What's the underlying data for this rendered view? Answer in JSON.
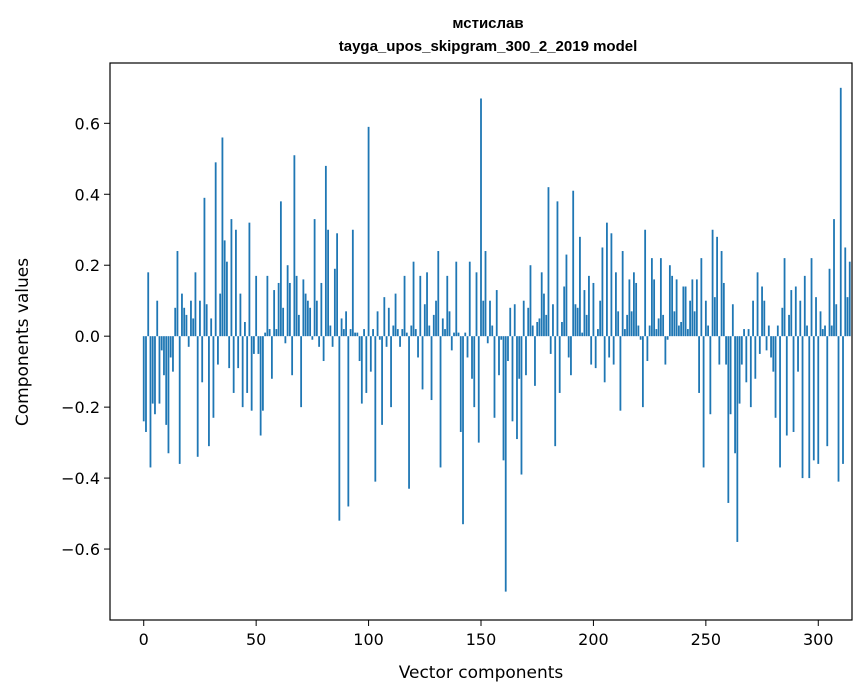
{
  "chart_data": {
    "type": "bar",
    "title": "мстислав",
    "subtitle": "tayga_upos_skipgram_300_2_2019 model",
    "xlabel": "Vector components",
    "ylabel": "Components values",
    "xlim": [
      -15,
      315
    ],
    "ylim": [
      -0.8,
      0.77
    ],
    "x_ticks": [
      0,
      50,
      100,
      150,
      200,
      250,
      300
    ],
    "x_tick_labels": [
      "0",
      "50",
      "100",
      "150",
      "200",
      "250",
      "300"
    ],
    "y_ticks": [
      -0.6,
      -0.4,
      -0.2,
      0.0,
      0.2,
      0.4,
      0.6
    ],
    "y_tick_labels": [
      "−0.6",
      "−0.4",
      "−0.2",
      "0.0",
      "0.2",
      "0.4",
      "0.6"
    ],
    "bar_color": "#1f77b4",
    "values": [
      -0.24,
      -0.27,
      0.18,
      -0.37,
      -0.19,
      -0.22,
      0.1,
      -0.19,
      -0.04,
      -0.11,
      -0.25,
      -0.33,
      -0.06,
      -0.1,
      0.08,
      0.24,
      -0.36,
      0.12,
      0.08,
      0.06,
      -0.03,
      0.1,
      0.05,
      0.18,
      -0.34,
      0.1,
      -0.13,
      0.39,
      0.09,
      -0.31,
      0.05,
      -0.23,
      0.49,
      -0.08,
      0.12,
      0.56,
      0.27,
      0.21,
      -0.09,
      0.33,
      -0.16,
      0.3,
      -0.09,
      0.12,
      -0.2,
      0.04,
      -0.16,
      0.32,
      -0.21,
      -0.05,
      0.17,
      -0.05,
      -0.28,
      -0.21,
      0.01,
      0.17,
      0.02,
      -0.12,
      0.13,
      0.02,
      0.15,
      0.38,
      0.08,
      -0.02,
      0.2,
      0.15,
      -0.11,
      0.51,
      0.17,
      0.06,
      -0.2,
      0.16,
      0.12,
      0.1,
      0.08,
      -0.01,
      0.33,
      0.1,
      -0.03,
      0.15,
      -0.07,
      0.48,
      0.3,
      0.03,
      -0.03,
      0.19,
      0.29,
      -0.52,
      0.05,
      0.02,
      0.07,
      -0.48,
      0.02,
      0.3,
      0.01,
      0.01,
      -0.07,
      -0.19,
      0.02,
      -0.16,
      0.59,
      -0.1,
      0.02,
      -0.41,
      0.07,
      -0.01,
      -0.25,
      0.11,
      -0.03,
      0.08,
      -0.2,
      0.03,
      0.12,
      0.02,
      -0.03,
      0.02,
      0.17,
      0.01,
      -0.43,
      0.03,
      0.21,
      0.02,
      -0.06,
      0.17,
      -0.15,
      0.09,
      0.18,
      0.03,
      -0.18,
      0.06,
      0.1,
      0.24,
      -0.37,
      0.05,
      0.02,
      0.17,
      0.07,
      -0.04,
      0.01,
      0.21,
      0.01,
      -0.27,
      -0.53,
      0.01,
      -0.06,
      0.21,
      -0.12,
      -0.2,
      0.18,
      -0.3,
      0.67,
      0.1,
      0.24,
      -0.02,
      0.1,
      0.03,
      -0.23,
      0.13,
      -0.11,
      -0.01,
      -0.35,
      -0.72,
      -0.07,
      0.08,
      -0.24,
      0.09,
      -0.29,
      -0.12,
      -0.39,
      0.1,
      -0.11,
      0.08,
      0.2,
      0.03,
      -0.14,
      0.04,
      0.05,
      0.18,
      0.12,
      0.06,
      0.42,
      -0.05,
      0.09,
      -0.31,
      0.38,
      -0.16,
      0.04,
      0.14,
      0.23,
      -0.06,
      -0.11,
      0.41,
      0.09,
      0.08,
      0.28,
      0.01,
      0.13,
      0.06,
      0.17,
      -0.08,
      0.15,
      -0.09,
      0.02,
      0.1,
      0.25,
      -0.13,
      0.32,
      -0.06,
      0.29,
      -0.08,
      0.18,
      0.07,
      -0.21,
      0.24,
      0.02,
      0.06,
      0.16,
      0.07,
      0.18,
      0.15,
      0.03,
      -0.01,
      -0.2,
      0.3,
      -0.07,
      0.03,
      0.22,
      0.16,
      0.02,
      0.05,
      0.22,
      0.06,
      -0.08,
      -0.01,
      0.2,
      0.17,
      0.07,
      0.16,
      0.03,
      0.04,
      0.14,
      0.14,
      0.02,
      0.1,
      0.16,
      0.07,
      0.16,
      -0.16,
      0.22,
      -0.37,
      0.1,
      0.03,
      -0.22,
      0.3,
      0.11,
      0.28,
      -0.08,
      0.24,
      0.15,
      -0.08,
      -0.47,
      -0.22,
      0.09,
      -0.33,
      -0.58,
      -0.19,
      -0.08,
      0.02,
      -0.13,
      0.02,
      -0.2,
      0.1,
      -0.12,
      0.18,
      -0.05,
      0.14,
      0.1,
      -0.04,
      0.03,
      -0.06,
      -0.1,
      -0.23,
      0.03,
      -0.37,
      0.08,
      0.22,
      -0.28,
      0.06,
      0.13,
      -0.27,
      0.14,
      -0.1,
      0.1,
      -0.4,
      0.17,
      0.03,
      -0.4,
      0.22,
      -0.35,
      0.11,
      -0.36,
      0.07,
      0.02,
      0.03,
      -0.31,
      0.19,
      0.03,
      0.33,
      0.09,
      -0.41,
      0.7,
      -0.36,
      0.25,
      0.11,
      0.21
    ]
  }
}
